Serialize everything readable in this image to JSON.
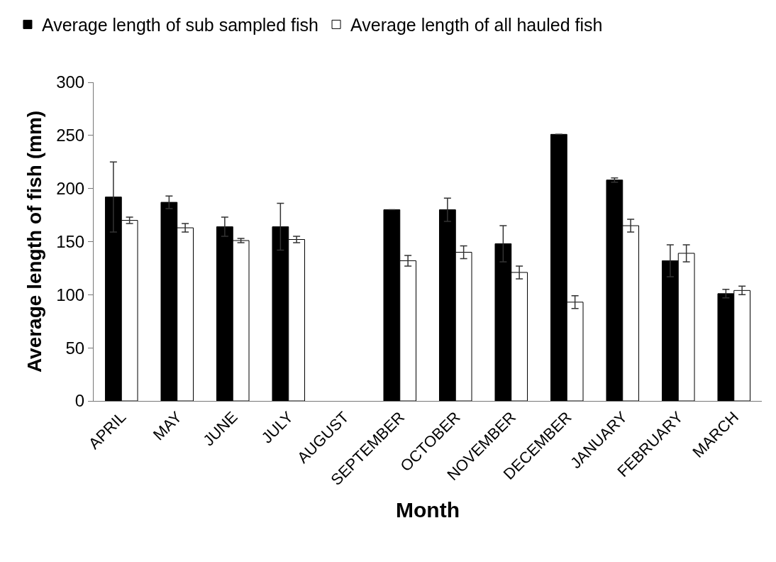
{
  "chart_data": {
    "type": "bar",
    "xlabel": "Month",
    "ylabel": "Average length of fish (mm)",
    "categories": [
      "APRIL",
      "MAY",
      "JUNE",
      "JULY",
      "AUGUST",
      "SEPTEMBER",
      "OCTOBER",
      "NOVEMBER",
      "DECEMBER",
      "JANUARY",
      "FEBRUARY",
      "MARCH"
    ],
    "series": [
      {
        "name": "Average length of sub sampled fish",
        "color": "#000000",
        "values": [
          192,
          187,
          164,
          164,
          null,
          180,
          180,
          148,
          251,
          208,
          132,
          101
        ],
        "errors": [
          33,
          6,
          9,
          22,
          null,
          null,
          11,
          17,
          null,
          2,
          15,
          4
        ]
      },
      {
        "name": "Average length of all hauled fish",
        "color": "#ffffff",
        "values": [
          170,
          163,
          151,
          152,
          null,
          132,
          140,
          121,
          93,
          165,
          139,
          104
        ],
        "errors": [
          3,
          4,
          2,
          3,
          null,
          5,
          6,
          6,
          6,
          6,
          8,
          4
        ]
      }
    ],
    "ylim": [
      0,
      300
    ],
    "yticks": [
      0,
      50,
      100,
      150,
      200,
      250,
      300
    ],
    "grid": false,
    "legend": "top left"
  }
}
